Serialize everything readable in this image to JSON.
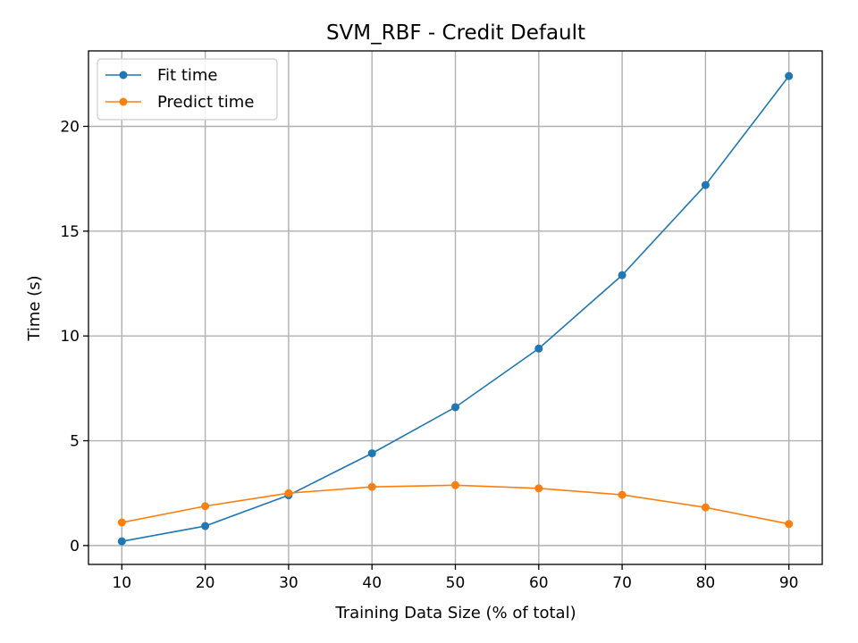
{
  "chart_data": {
    "type": "line",
    "title": "SVM_RBF - Credit Default",
    "xlabel": "Training Data Size (% of total)",
    "ylabel": "Time (s)",
    "x": [
      10,
      20,
      30,
      40,
      50,
      60,
      70,
      80,
      90
    ],
    "xticks": [
      10,
      20,
      30,
      40,
      50,
      60,
      70,
      80,
      90
    ],
    "yticks": [
      0,
      5,
      10,
      15,
      20
    ],
    "xlim": [
      6,
      94
    ],
    "ylim": [
      -0.9,
      23.6
    ],
    "grid": true,
    "legend_position": "top-left",
    "series": [
      {
        "name": "Fit time",
        "color": "#1f77b4",
        "values": [
          0.2,
          0.93,
          2.4,
          4.4,
          6.6,
          9.4,
          12.9,
          17.2,
          22.4
        ]
      },
      {
        "name": "Predict time",
        "color": "#ff7f0e",
        "values": [
          1.1,
          1.88,
          2.5,
          2.8,
          2.88,
          2.73,
          2.42,
          1.82,
          1.03
        ]
      }
    ]
  }
}
